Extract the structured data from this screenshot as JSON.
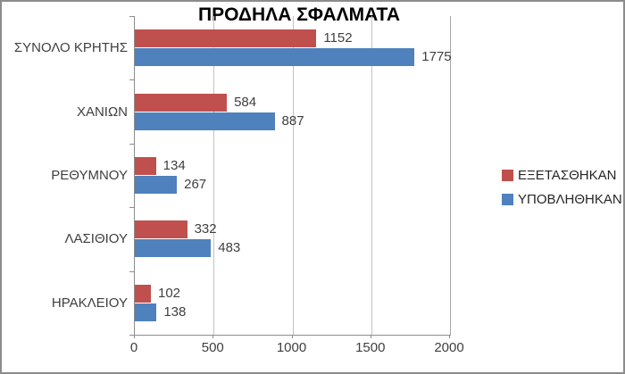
{
  "chart_data": {
    "type": "bar",
    "orientation": "horizontal",
    "title": "ΠΡΟΔΗΛΑ ΣΦΑΛΜΑΤΑ",
    "categories": [
      "ΣΥΝΟΛΟ ΚΡΗΤΗΣ",
      "ΧΑΝΙΩΝ",
      "ΡΕΘΥΜΝΟΥ",
      "ΛΑΣΙΘΙΟΥ",
      "ΗΡΑΚΛΕΙΟΥ"
    ],
    "series": [
      {
        "name": "ΕΞΕΤΑΣΘΗΚΑΝ",
        "color": "#C0504D",
        "values": [
          1152,
          584,
          134,
          332,
          102
        ]
      },
      {
        "name": "ΥΠΟΒΛΗΘΗΚΑΝ",
        "color": "#4F81BD",
        "values": [
          1775,
          887,
          267,
          483,
          138
        ]
      }
    ],
    "x_axis": {
      "min": 0,
      "max": 2000,
      "tick_interval": 500,
      "ticks": [
        0,
        500,
        1000,
        1500,
        2000
      ]
    },
    "legend_position": "right",
    "gridlines": "vertical",
    "data_labels": true,
    "colors": {
      "frame_border": "#8c8c8c",
      "axis_line": "#8c8c8c",
      "gridline": "#c3c3c3",
      "text": "#3f3f3f",
      "background": "#ffffff"
    }
  }
}
